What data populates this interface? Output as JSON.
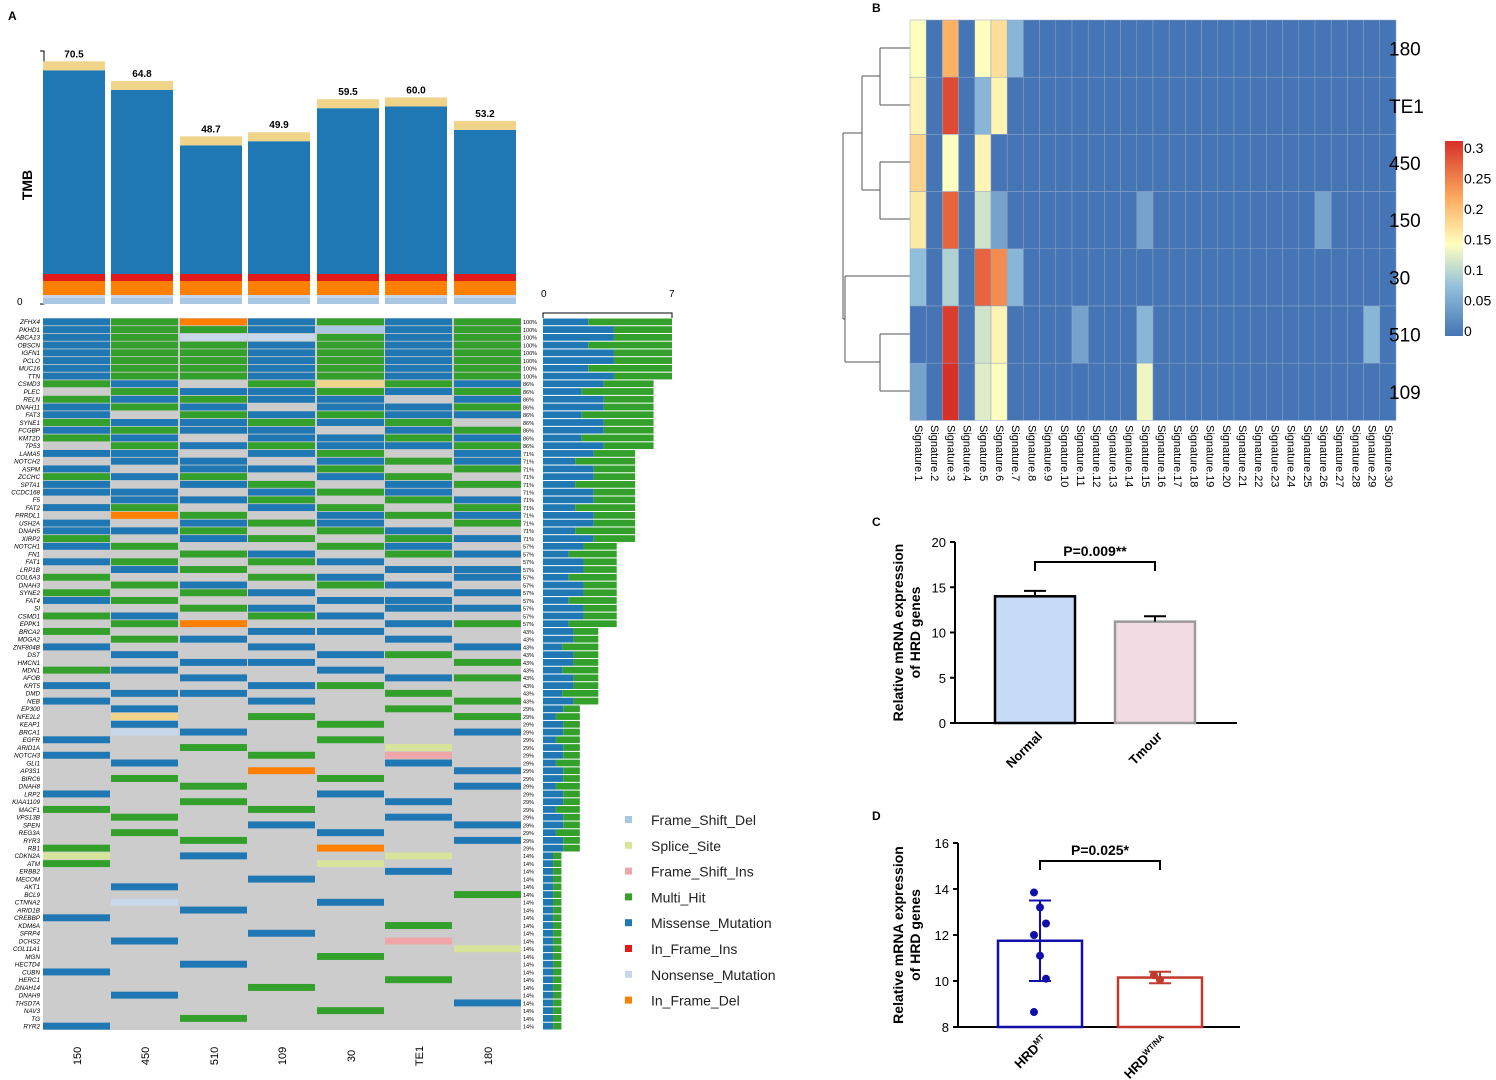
{
  "panel_labels": {
    "a": "A",
    "b": "B",
    "c": "C",
    "d": "D"
  },
  "colors": {
    "Frame_Shift_Del": "#a9c7e3",
    "Splice_Site": "#d8e39b",
    "Frame_Shift_Ins": "#f0a5a8",
    "Multi_Hit": "#33a02c",
    "Missense_Mutation": "#1f78b4",
    "In_Frame_Ins": "#e31a1c",
    "Nonsense_Mutation": "#c8d8ea",
    "In_Frame_Del": "#ff7f00",
    "top_band": "#f0d48a",
    "grey": "#cccccc",
    "heat_low": "#4575b4",
    "heat_high": "#d73027"
  },
  "chart_data": [
    {
      "type": "bar",
      "id": "tmb",
      "ylabel": "TMB",
      "y0_label": "0",
      "categories": [
        "150",
        "450",
        "510",
        "109",
        "30",
        "TE1",
        "180"
      ],
      "values": [
        70.5,
        64.8,
        48.7,
        49.9,
        59.5,
        60.0,
        53.2
      ],
      "value_labels": [
        "70.5",
        "64.8",
        "48.7",
        "49.9",
        "59.5",
        "60.0",
        "53.2"
      ],
      "ylim": [
        0,
        75
      ]
    },
    {
      "type": "heatmap",
      "id": "oncoprint",
      "samples": [
        "150",
        "450",
        "510",
        "109",
        "30",
        "TE1",
        "180"
      ],
      "axis_min": "0",
      "axis_max": "7",
      "genes": [
        "ZFHX4",
        "PKHD1",
        "ABCA13",
        "OBSCN",
        "IGFN1",
        "PCLO",
        "MUC16",
        "TTN",
        "CSMD3",
        "PLEC",
        "RELN",
        "DNAH11",
        "FAT3",
        "SYNE1",
        "FCGBP",
        "KMT2D",
        "TP53",
        "LAMA5",
        "NOTCH2",
        "ASPM",
        "ZCCHC",
        "SPTA1",
        "CCDC168",
        "F5",
        "FAT2",
        "PRRDL1",
        "USH2A",
        "DNAH5",
        "XIRP2",
        "NOTCH1",
        "FN1",
        "FAT1",
        "LRP1B",
        "COL6A3",
        "DNAH3",
        "SYNE2",
        "FAT4",
        "SI",
        "CSMD1",
        "EPPK1",
        "BRCA2",
        "MDGA2",
        "ZNF804B",
        "DST",
        "HMCN1",
        "MDN1",
        "AFOB",
        "KRT5",
        "DMD",
        "NEB",
        "EP300",
        "NFE2L2",
        "KEAP1",
        "BRCA1",
        "EGFR",
        "ARID1A",
        "NOTCH3",
        "GLI1",
        "AP3S1",
        "BIRC6",
        "DNAH8",
        "LRP2",
        "KIAA1109",
        "MACF1",
        "VPS13B",
        "SPEN",
        "REG3A",
        "RYR3",
        "RB1",
        "CDKN2A",
        "ATM",
        "ERBB2",
        "MECOM",
        "AKT1",
        "BCL9",
        "CTNNA2",
        "ARID1B",
        "CREBBP",
        "KDM6A",
        "SFRP4",
        "DCHS2",
        "COL11A1",
        "MGN",
        "HECTD4",
        "CUBN",
        "HERC1",
        "DNAH14",
        "DNAH9",
        "THSD7A",
        "NAV3",
        "TG",
        "RYR2"
      ],
      "pct": [
        "100%",
        "100%",
        "100%",
        "100%",
        "100%",
        "100%",
        "100%",
        "100%",
        "86%",
        "86%",
        "86%",
        "86%",
        "86%",
        "86%",
        "86%",
        "86%",
        "86%",
        "71%",
        "71%",
        "71%",
        "71%",
        "71%",
        "71%",
        "71%",
        "71%",
        "71%",
        "71%",
        "71%",
        "71%",
        "57%",
        "57%",
        "57%",
        "57%",
        "57%",
        "57%",
        "57%",
        "57%",
        "57%",
        "57%",
        "57%",
        "43%",
        "43%",
        "43%",
        "43%",
        "43%",
        "43%",
        "43%",
        "43%",
        "43%",
        "43%",
        "29%",
        "29%",
        "29%",
        "29%",
        "29%",
        "29%",
        "29%",
        "29%",
        "29%",
        "29%",
        "29%",
        "29%",
        "29%",
        "29%",
        "29%",
        "29%",
        "29%",
        "29%",
        "29%",
        "14%",
        "14%",
        "14%",
        "14%",
        "14%",
        "14%",
        "14%",
        "14%",
        "14%",
        "14%",
        "14%",
        "14%",
        "14%",
        "14%",
        "14%",
        "14%",
        "14%",
        "14%",
        "14%",
        "14%",
        "14%",
        "14%",
        "14%"
      ],
      "counts": [
        7,
        7,
        7,
        7,
        7,
        7,
        7,
        7,
        6,
        6,
        6,
        6,
        6,
        6,
        6,
        6,
        6,
        5,
        5,
        5,
        5,
        5,
        5,
        5,
        5,
        5,
        5,
        5,
        5,
        4,
        4,
        4,
        4,
        4,
        4,
        4,
        4,
        4,
        4,
        4,
        3,
        3,
        3,
        3,
        3,
        3,
        3,
        3,
        3,
        3,
        2,
        2,
        2,
        2,
        2,
        2,
        2,
        2,
        2,
        2,
        2,
        2,
        2,
        2,
        2,
        2,
        2,
        2,
        2,
        1,
        1,
        1,
        1,
        1,
        1,
        1,
        1,
        1,
        1,
        1,
        1,
        1,
        1,
        1,
        1,
        1,
        1,
        1,
        1,
        1,
        1,
        1
      ]
    },
    {
      "type": "heatmap",
      "id": "signatures",
      "rows": [
        "180",
        "TE1",
        "450",
        "150",
        "30",
        "510",
        "109"
      ],
      "columns": [
        "Signature.1",
        "Signature.2",
        "Signature.3",
        "Signature.4",
        "Signature.5",
        "Signature.6",
        "Signature.7",
        "Signature.8",
        "Signature.9",
        "Signature.10",
        "Signature.11",
        "Signature.12",
        "Signature.13",
        "Signature.14",
        "Signature.15",
        "Signature.16",
        "Signature.17",
        "Signature.18",
        "Signature.19",
        "Signature.20",
        "Signature.21",
        "Signature.22",
        "Signature.23",
        "Signature.24",
        "Signature.25",
        "Signature.26",
        "Signature.27",
        "Signature.28",
        "Signature.29",
        "Signature.30"
      ],
      "values": [
        [
          0.15,
          0,
          0.22,
          0,
          0.15,
          0.18,
          0.07,
          0,
          0,
          0,
          0,
          0,
          0,
          0,
          0,
          0,
          0,
          0,
          0,
          0,
          0,
          0,
          0,
          0,
          0,
          0,
          0,
          0,
          0,
          0
        ],
        [
          0.16,
          0,
          0.3,
          0,
          0.07,
          0.16,
          0,
          0,
          0,
          0,
          0,
          0,
          0,
          0,
          0,
          0,
          0,
          0,
          0,
          0,
          0,
          0,
          0,
          0,
          0,
          0,
          0,
          0,
          0,
          0
        ],
        [
          0.19,
          0,
          0.15,
          0,
          0.16,
          0,
          0,
          0,
          0,
          0,
          0,
          0,
          0,
          0,
          0,
          0,
          0,
          0,
          0,
          0,
          0,
          0,
          0,
          0,
          0,
          0,
          0,
          0,
          0,
          0
        ],
        [
          0.17,
          0,
          0.28,
          0,
          0.12,
          0.05,
          0,
          0,
          0,
          0,
          0,
          0,
          0,
          0,
          0.05,
          0,
          0,
          0,
          0,
          0,
          0,
          0,
          0,
          0,
          0,
          0.05,
          0,
          0,
          0,
          0
        ],
        [
          0.08,
          0,
          0.1,
          0,
          0.28,
          0.25,
          0.07,
          0,
          0,
          0,
          0,
          0,
          0,
          0,
          0,
          0,
          0,
          0,
          0,
          0,
          0,
          0,
          0,
          0,
          0,
          0,
          0,
          0,
          0,
          0
        ],
        [
          0,
          0,
          0.31,
          0,
          0.12,
          0.16,
          0,
          0,
          0,
          0,
          0.05,
          0,
          0,
          0,
          0.07,
          0,
          0,
          0,
          0,
          0,
          0,
          0,
          0,
          0,
          0,
          0,
          0,
          0,
          0.07,
          0
        ],
        [
          0.05,
          0,
          0.32,
          0,
          0.13,
          0.15,
          0,
          0,
          0,
          0,
          0,
          0,
          0,
          0,
          0.14,
          0,
          0,
          0,
          0,
          0,
          0,
          0,
          0,
          0,
          0,
          0,
          0,
          0,
          0,
          0
        ]
      ],
      "colorbar_ticks": [
        "0.3",
        "0.25",
        "0.2",
        "0.15",
        "0.1",
        "0.05",
        "0"
      ],
      "range": [
        0,
        0.32
      ]
    },
    {
      "type": "bar",
      "id": "panel_c",
      "categories": [
        "Normal",
        "Tmour"
      ],
      "values": [
        14.0,
        11.2
      ],
      "errors": [
        0.6,
        0.6
      ],
      "ylabel": "Relative mRNA expression\nof HRD genes",
      "ylim": [
        0,
        20
      ],
      "yticks": [
        "0",
        "5",
        "10",
        "15",
        "20"
      ],
      "annotation": "P=0.009**",
      "bar_colors": [
        "#c6dbf7",
        "#f3dbe3"
      ]
    },
    {
      "type": "bar",
      "id": "panel_d",
      "categories": [
        "HRD",
        "HRD"
      ],
      "superscripts": [
        "MT",
        "WT/NA"
      ],
      "values": [
        11.75,
        10.15
      ],
      "errors": [
        1.75,
        0.25
      ],
      "points": [
        [
          13.85,
          13.2,
          12.5,
          12.0,
          11.1,
          10.1,
          8.65
        ],
        [
          10.25,
          10.05
        ]
      ],
      "ylabel": "Relative mRNA expression\nof HRD genes",
      "ylim": [
        8,
        16
      ],
      "yticks": [
        "8",
        "10",
        "12",
        "14",
        "16"
      ],
      "annotation": "P=0.025*",
      "bar_colors": [
        "#1010a8",
        "#c0392b"
      ]
    }
  ],
  "legend": [
    "Frame_Shift_Del",
    "Splice_Site",
    "Frame_Shift_Ins",
    "Multi_Hit",
    "Missense_Mutation",
    "In_Frame_Ins",
    "Nonsense_Mutation",
    "In_Frame_Del"
  ]
}
